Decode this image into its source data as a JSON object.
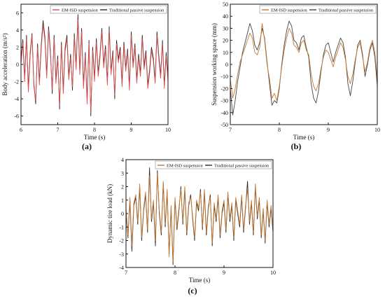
{
  "figure": {
    "panel_labels": [
      "(a)",
      "(b)",
      "(c)"
    ]
  },
  "legend_entries": [
    "EM-ISD suspension",
    "Traditional passive suspension"
  ],
  "colors": {
    "em_isd": "#e05050",
    "passive": "#2a2a2a",
    "axis": "#111111"
  },
  "chart_data": [
    {
      "type": "line",
      "xlabel": "Time (s)",
      "ylabel": "Body acceleration (m/s²)",
      "xlim": [
        6,
        10
      ],
      "ylim": [
        -7,
        7
      ],
      "xticks": [
        "6",
        "7",
        "8",
        "9",
        "10"
      ],
      "yticks": [
        "-6",
        "-4",
        "-2",
        "0",
        "2",
        "4",
        "6"
      ],
      "legend": "top-right",
      "series": [
        {
          "name": "EM-ISD suspension",
          "color": "#e05050",
          "x": [
            6.0,
            6.05,
            6.1,
            6.15,
            6.2,
            6.25,
            6.3,
            6.35,
            6.4,
            6.45,
            6.5,
            6.55,
            6.6,
            6.65,
            6.7,
            6.75,
            6.8,
            6.85,
            6.9,
            6.95,
            7.0,
            7.05,
            7.1,
            7.15,
            7.2,
            7.25,
            7.3,
            7.35,
            7.4,
            7.45,
            7.5,
            7.55,
            7.6,
            7.65,
            7.7,
            7.75,
            7.8,
            7.85,
            7.9,
            7.95,
            8.0,
            8.05,
            8.1,
            8.15,
            8.2,
            8.25,
            8.3,
            8.35,
            8.4,
            8.45,
            8.5,
            8.55,
            8.6,
            8.65,
            8.7,
            8.75,
            8.8,
            8.85,
            8.9,
            8.95,
            9.0,
            9.05,
            9.1,
            9.15,
            9.2,
            9.25,
            9.3,
            9.35,
            9.4,
            9.45,
            9.5,
            9.55,
            9.6,
            9.65,
            9.7,
            9.75,
            9.8,
            9.85,
            9.9,
            9.95,
            10.0
          ],
          "y": [
            0.0,
            2.5,
            -2.0,
            3.0,
            -3.2,
            1.0,
            3.4,
            -2.6,
            -4.2,
            2.0,
            -2.4,
            1.8,
            4.6,
            2.8,
            -1.6,
            4.0,
            1.2,
            -3.0,
            3.0,
            -2.2,
            0.6,
            -4.8,
            2.2,
            -3.4,
            1.5,
            3.0,
            -1.8,
            0.8,
            -2.6,
            3.2,
            -0.6,
            5.2,
            -1.2,
            3.8,
            -2.8,
            1.0,
            -4.6,
            2.4,
            -5.6,
            1.6,
            -2.0,
            2.6,
            -1.4,
            0.8,
            3.8,
            -0.4,
            1.8,
            -2.4,
            4.0,
            -1.2,
            1.2,
            -3.6,
            2.4,
            0.2,
            1.6,
            -2.6,
            2.2,
            -0.8,
            1.4,
            -3.0,
            3.4,
            -0.4,
            2.0,
            -2.2,
            0.8,
            -1.4,
            3.0,
            -0.6,
            1.2,
            -2.8,
            -1.0,
            1.6,
            0.4,
            -2.2,
            3.4,
            0.6,
            -1.6,
            2.4,
            -2.8,
            1.0,
            -2.0
          ]
        },
        {
          "name": "Traditional passive suspension",
          "color": "#2a2a2a",
          "x": [
            6.0,
            6.05,
            6.1,
            6.15,
            6.2,
            6.25,
            6.3,
            6.35,
            6.4,
            6.45,
            6.5,
            6.55,
            6.6,
            6.65,
            6.7,
            6.75,
            6.8,
            6.85,
            6.9,
            6.95,
            7.0,
            7.05,
            7.1,
            7.15,
            7.2,
            7.25,
            7.3,
            7.35,
            7.4,
            7.45,
            7.5,
            7.55,
            7.6,
            7.65,
            7.7,
            7.75,
            7.8,
            7.85,
            7.9,
            7.95,
            8.0,
            8.05,
            8.1,
            8.15,
            8.2,
            8.25,
            8.3,
            8.35,
            8.4,
            8.45,
            8.5,
            8.55,
            8.6,
            8.65,
            8.7,
            8.75,
            8.8,
            8.85,
            8.9,
            8.95,
            9.0,
            9.05,
            9.1,
            9.15,
            9.2,
            9.25,
            9.3,
            9.35,
            9.4,
            9.45,
            9.5,
            9.55,
            9.6,
            9.65,
            9.7,
            9.75,
            9.8,
            9.85,
            9.9,
            9.95,
            10.0
          ],
          "y": [
            0.4,
            2.9,
            -1.6,
            3.4,
            -2.8,
            1.4,
            3.6,
            -2.2,
            -4.6,
            2.4,
            -2.0,
            2.2,
            5.1,
            3.2,
            -1.2,
            4.4,
            1.6,
            -3.4,
            3.4,
            -1.8,
            1.0,
            -5.2,
            2.6,
            -3.0,
            1.9,
            3.4,
            -1.4,
            1.2,
            -3.0,
            3.6,
            -0.2,
            5.8,
            -0.8,
            4.2,
            -2.4,
            1.4,
            -4.2,
            2.8,
            -6.0,
            2.0,
            -1.6,
            3.0,
            -1.0,
            1.2,
            4.2,
            0.0,
            2.2,
            -2.0,
            4.4,
            -0.8,
            1.6,
            -4.0,
            2.8,
            0.6,
            2.0,
            -2.2,
            2.6,
            -0.4,
            1.8,
            -2.6,
            3.8,
            0.0,
            2.4,
            -1.8,
            1.2,
            -1.0,
            3.4,
            -0.2,
            1.6,
            -2.4,
            -0.6,
            2.0,
            0.8,
            -1.8,
            3.8,
            1.0,
            -1.2,
            2.8,
            -2.4,
            1.4,
            -1.6
          ]
        }
      ]
    },
    {
      "type": "line",
      "xlabel": "Time (s)",
      "ylabel": "Suspension working space (mm)",
      "xlim": [
        7,
        10
      ],
      "ylim": [
        -50,
        50
      ],
      "xticks": [
        "7",
        "8",
        "9",
        "10"
      ],
      "yticks": [
        "-50",
        "-40",
        "-30",
        "-20",
        "-10",
        "0",
        "10",
        "20",
        "30",
        "40",
        "50"
      ],
      "legend": "top-right",
      "series": [
        {
          "name": "EM-ISD suspension",
          "color": "#c87830",
          "x": [
            7.0,
            7.05,
            7.1,
            7.15,
            7.2,
            7.25,
            7.3,
            7.35,
            7.4,
            7.45,
            7.5,
            7.55,
            7.6,
            7.65,
            7.7,
            7.75,
            7.8,
            7.85,
            7.9,
            7.95,
            8.0,
            8.05,
            8.1,
            8.15,
            8.2,
            8.25,
            8.3,
            8.35,
            8.4,
            8.45,
            8.5,
            8.55,
            8.6,
            8.65,
            8.7,
            8.75,
            8.8,
            8.85,
            8.9,
            8.95,
            9.0,
            9.05,
            9.1,
            9.15,
            9.2,
            9.25,
            9.3,
            9.35,
            9.4,
            9.45,
            9.5,
            9.55,
            9.6,
            9.65,
            9.7,
            9.75,
            9.8,
            9.85,
            9.9,
            9.95,
            10.0
          ],
          "y": [
            -12,
            -28,
            -20,
            -8,
            2,
            8,
            14,
            20,
            26,
            22,
            10,
            8,
            14,
            34,
            20,
            0,
            -12,
            -28,
            -24,
            -30,
            -18,
            -2,
            12,
            22,
            30,
            26,
            16,
            14,
            10,
            18,
            20,
            12,
            8,
            -8,
            -18,
            -22,
            -16,
            -4,
            6,
            12,
            10,
            4,
            -2,
            6,
            12,
            18,
            14,
            4,
            -10,
            -16,
            -8,
            4,
            14,
            18,
            6,
            -6,
            2,
            14,
            20,
            10,
            -12
          ]
        },
        {
          "name": "Traditional passive suspension",
          "color": "#444444",
          "x": [
            7.0,
            7.05,
            7.1,
            7.15,
            7.2,
            7.25,
            7.3,
            7.35,
            7.4,
            7.45,
            7.5,
            7.55,
            7.6,
            7.65,
            7.7,
            7.75,
            7.8,
            7.85,
            7.9,
            7.95,
            8.0,
            8.05,
            8.1,
            8.15,
            8.2,
            8.25,
            8.3,
            8.35,
            8.4,
            8.45,
            8.5,
            8.55,
            8.6,
            8.65,
            8.7,
            8.75,
            8.8,
            8.85,
            8.9,
            8.95,
            9.0,
            9.05,
            9.1,
            9.15,
            9.2,
            9.25,
            9.3,
            9.35,
            9.4,
            9.45,
            9.5,
            9.55,
            9.6,
            9.65,
            9.7,
            9.75,
            9.8,
            9.85,
            9.9,
            9.95,
            10.0
          ],
          "y": [
            -20,
            -42,
            -30,
            -14,
            -2,
            10,
            18,
            26,
            34,
            28,
            16,
            12,
            18,
            30,
            22,
            2,
            -16,
            -34,
            -30,
            -32,
            -20,
            0,
            16,
            28,
            36,
            32,
            20,
            18,
            12,
            22,
            24,
            14,
            6,
            -16,
            -28,
            -32,
            -22,
            -6,
            8,
            16,
            18,
            10,
            2,
            10,
            16,
            22,
            18,
            6,
            -16,
            -26,
            -14,
            2,
            16,
            20,
            8,
            -10,
            0,
            12,
            18,
            6,
            -18
          ]
        }
      ]
    },
    {
      "type": "line",
      "xlabel": "Time (s)",
      "ylabel": "Dynamic tire load (kN)",
      "xlim": [
        7,
        10
      ],
      "ylim": [
        -4,
        4
      ],
      "xticks": [
        "7",
        "8",
        "9",
        "10"
      ],
      "yticks": [
        "-4",
        "-3",
        "-2",
        "-1",
        "0",
        "1",
        "2",
        "3",
        "4"
      ],
      "legend": "top-right",
      "series": [
        {
          "name": "EM-ISD suspension",
          "color": "#c87830",
          "x": [
            7.0,
            7.04,
            7.08,
            7.12,
            7.16,
            7.2,
            7.24,
            7.28,
            7.32,
            7.36,
            7.4,
            7.44,
            7.48,
            7.52,
            7.56,
            7.6,
            7.64,
            7.68,
            7.72,
            7.76,
            7.8,
            7.84,
            7.88,
            7.92,
            7.96,
            8.0,
            8.04,
            8.08,
            8.12,
            8.16,
            8.2,
            8.24,
            8.28,
            8.32,
            8.36,
            8.4,
            8.44,
            8.48,
            8.52,
            8.56,
            8.6,
            8.64,
            8.68,
            8.72,
            8.76,
            8.8,
            8.84,
            8.88,
            8.92,
            8.96,
            9.0,
            9.04,
            9.08,
            9.12,
            9.16,
            9.2,
            9.24,
            9.28,
            9.32,
            9.36,
            9.4,
            9.44,
            9.48,
            9.52,
            9.56,
            9.6,
            9.64,
            9.68,
            9.72,
            9.76,
            9.8,
            9.84,
            9.88,
            9.92,
            9.96,
            10.0
          ],
          "y": [
            0.4,
            -1.6,
            1.2,
            -2.4,
            0.8,
            1.4,
            -0.6,
            2.2,
            -1.8,
            0.4,
            1.6,
            -1.2,
            2.8,
            -0.4,
            1.0,
            -2.0,
            3.0,
            0.2,
            -1.4,
            2.4,
            -0.8,
            1.8,
            -3.2,
            0.6,
            -3.6,
            1.2,
            -1.0,
            0.4,
            1.8,
            -0.6,
            2.0,
            -1.4,
            0.8,
            1.2,
            -0.2,
            -1.8,
            1.0,
            0.4,
            1.6,
            -1.0,
            1.8,
            -1.4,
            0.6,
            1.2,
            -2.2,
            0.8,
            -0.4,
            1.4,
            -1.6,
            0.2,
            1.0,
            -1.2,
            1.6,
            -0.4,
            0.8,
            -1.8,
            1.2,
            0.2,
            -0.8,
            1.4,
            -1.2,
            0.6,
            1.8,
            -0.6,
            1.0,
            -1.4,
            2.2,
            -0.2,
            1.2,
            -1.6,
            0.4,
            -2.0,
            1.0,
            -0.8,
            0.6,
            -1.2
          ]
        },
        {
          "name": "Traditional passive suspension",
          "color": "#2a2a2a",
          "x": [
            7.0,
            7.04,
            7.08,
            7.12,
            7.16,
            7.2,
            7.24,
            7.28,
            7.32,
            7.36,
            7.4,
            7.44,
            7.48,
            7.52,
            7.56,
            7.6,
            7.64,
            7.68,
            7.72,
            7.76,
            7.8,
            7.84,
            7.88,
            7.92,
            7.96,
            8.0,
            8.04,
            8.08,
            8.12,
            8.16,
            8.2,
            8.24,
            8.28,
            8.32,
            8.36,
            8.4,
            8.44,
            8.48,
            8.52,
            8.56,
            8.6,
            8.64,
            8.68,
            8.72,
            8.76,
            8.8,
            8.84,
            8.88,
            8.92,
            8.96,
            9.0,
            9.04,
            9.08,
            9.12,
            9.16,
            9.2,
            9.24,
            9.28,
            9.32,
            9.36,
            9.4,
            9.44,
            9.48,
            9.52,
            9.56,
            9.6,
            9.64,
            9.68,
            9.72,
            9.76,
            9.8,
            9.84,
            9.88,
            9.92,
            9.96,
            10.0
          ],
          "y": [
            0.2,
            -1.8,
            1.0,
            -2.8,
            0.6,
            1.2,
            -0.8,
            2.0,
            -2.0,
            0.2,
            1.4,
            -1.4,
            3.4,
            -0.6,
            0.8,
            -2.4,
            3.2,
            0.0,
            -1.6,
            2.2,
            -1.0,
            1.6,
            -3.0,
            0.4,
            -3.8,
            1.0,
            -1.2,
            0.2,
            2.0,
            -0.8,
            1.8,
            -1.6,
            0.6,
            1.4,
            -0.4,
            -2.0,
            0.8,
            0.2,
            1.8,
            -1.2,
            1.6,
            -1.6,
            0.4,
            1.4,
            -2.4,
            0.6,
            -0.6,
            1.2,
            -1.8,
            0.0,
            0.8,
            -1.4,
            1.4,
            -0.6,
            0.6,
            -2.0,
            1.0,
            0.0,
            -1.0,
            1.2,
            -1.4,
            0.4,
            2.4,
            -0.8,
            0.8,
            -1.6,
            2.0,
            -0.4,
            1.0,
            -1.8,
            0.2,
            -2.2,
            0.8,
            -1.0,
            0.4,
            -1.4
          ]
        }
      ]
    }
  ]
}
